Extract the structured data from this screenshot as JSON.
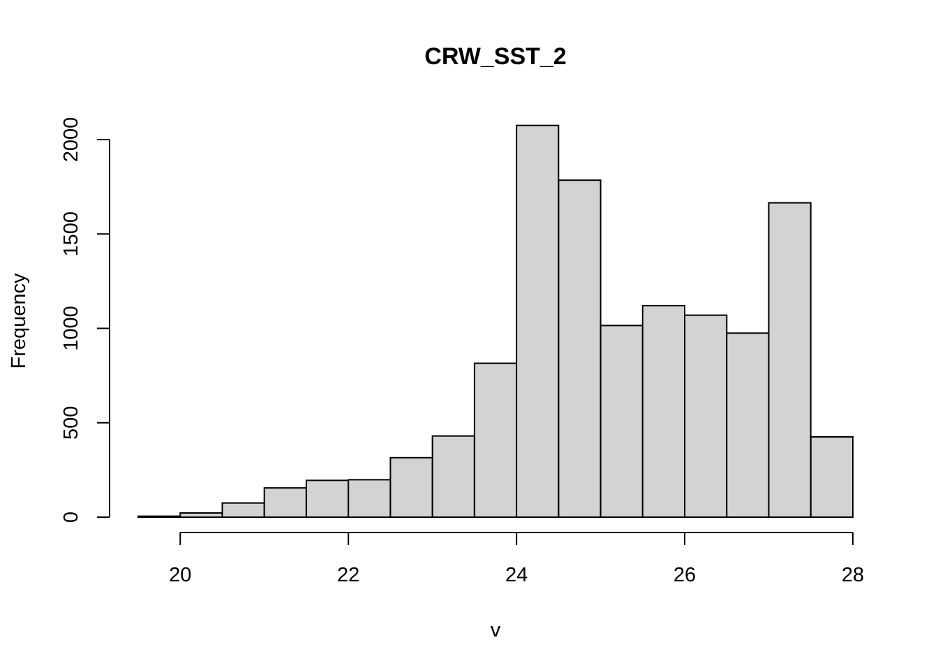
{
  "chart_data": {
    "type": "bar",
    "title": "CRW_SST_2",
    "xlabel": "v",
    "ylabel": "Frequency",
    "bin_edges": [
      19.5,
      20.0,
      20.5,
      21.0,
      21.5,
      22.0,
      22.5,
      23.0,
      23.5,
      24.0,
      24.5,
      25.0,
      25.5,
      26.0,
      26.5,
      27.0,
      27.5,
      28.0
    ],
    "values": [
      5,
      22,
      75,
      155,
      195,
      198,
      315,
      430,
      815,
      2075,
      1785,
      1015,
      1120,
      1070,
      975,
      1665,
      425
    ],
    "x_ticks": [
      20,
      22,
      24,
      26,
      28
    ],
    "y_ticks": [
      0,
      500,
      1000,
      1500,
      2000
    ],
    "xlim": [
      19.5,
      28
    ],
    "ylim": [
      0,
      2080
    ],
    "grid": false,
    "legend": "none",
    "bar_fill": "#d3d3d3",
    "bar_stroke": "#000000"
  }
}
